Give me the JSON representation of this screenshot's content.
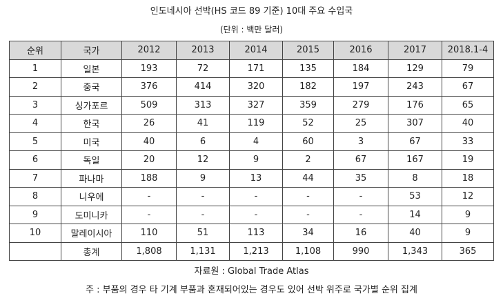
{
  "title": "인도네시아 선박(HS 코드 89 기준) 10대 주요 수입국",
  "unit": "(단위 : 백만 달러)",
  "table": {
    "headers": [
      "순위",
      "국가",
      "2012",
      "2013",
      "2014",
      "2015",
      "2016",
      "2017",
      "2018.1-4"
    ],
    "rows": [
      [
        "1",
        "일본",
        "193",
        "72",
        "171",
        "135",
        "184",
        "129",
        "79"
      ],
      [
        "2",
        "중국",
        "376",
        "414",
        "320",
        "182",
        "197",
        "243",
        "67"
      ],
      [
        "3",
        "싱가포르",
        "509",
        "313",
        "327",
        "359",
        "279",
        "176",
        "65"
      ],
      [
        "4",
        "한국",
        "26",
        "41",
        "119",
        "52",
        "25",
        "307",
        "40"
      ],
      [
        "5",
        "미국",
        "40",
        "6",
        "4",
        "60",
        "3",
        "67",
        "33"
      ],
      [
        "6",
        "독일",
        "20",
        "12",
        "9",
        "2",
        "67",
        "167",
        "19"
      ],
      [
        "7",
        "파나마",
        "188",
        "9",
        "13",
        "44",
        "35",
        "8",
        "18"
      ],
      [
        "8",
        "니우에",
        "-",
        "-",
        "-",
        "-",
        "-",
        "53",
        "12"
      ],
      [
        "9",
        "도미니카",
        "-",
        "-",
        "-",
        "-",
        "-",
        "14",
        "9"
      ],
      [
        "10",
        "말레이시아",
        "110",
        "51",
        "113",
        "34",
        "16",
        "40",
        "9"
      ],
      [
        "",
        "총계",
        "1,808",
        "1,131",
        "1,213",
        "1,108",
        "990",
        "1,343",
        "365"
      ]
    ]
  },
  "source": "자료원 : Global Trade Atlas",
  "note": "주 : 부품의 경우 타 기계 부품과 혼재되어있는 경우도 있어 선박 위주로 국가별 순위 집계",
  "colors": {
    "header_bg": "#d9d9d9",
    "border": "#444444",
    "text": "#222222"
  }
}
